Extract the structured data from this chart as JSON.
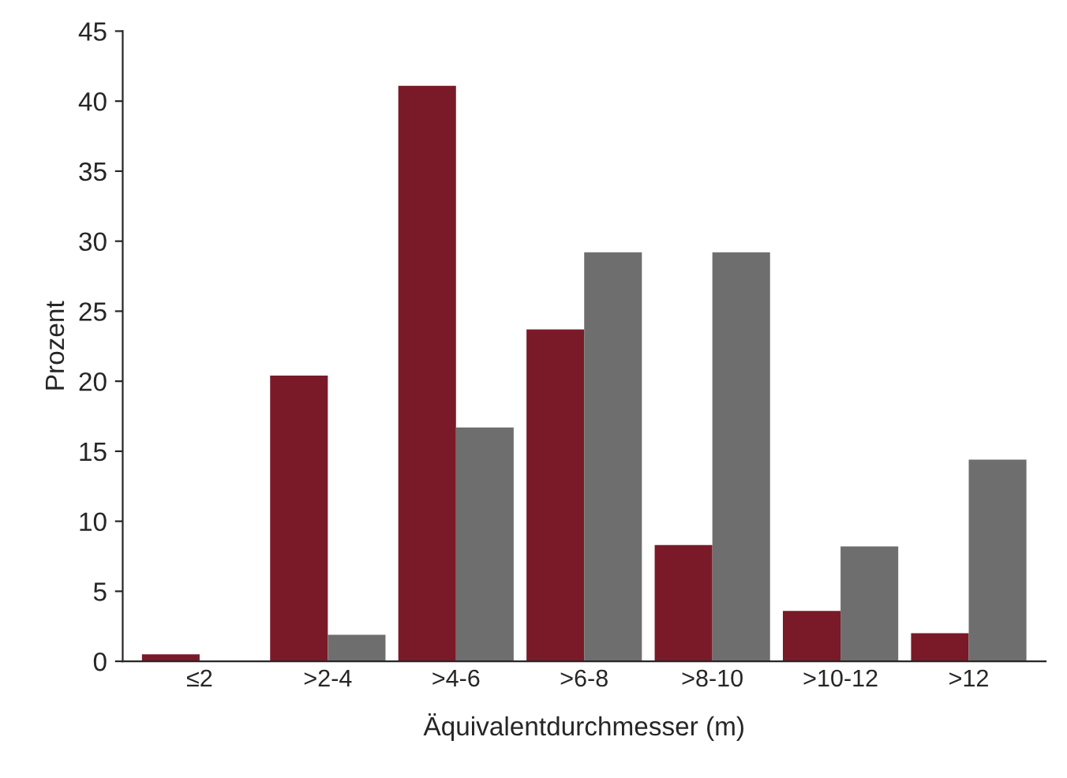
{
  "chart_data": {
    "type": "bar",
    "xlabel": "Äquivalentdurchmesser (m)",
    "ylabel": "Prozent",
    "categories": [
      "≤2",
      ">2-4",
      ">4-6",
      ">6-8",
      ">8-10",
      ">10-12",
      ">12"
    ],
    "series": [
      {
        "color": "#7a1a28",
        "values": [
          0.5,
          20.4,
          41.1,
          23.7,
          8.3,
          3.6,
          2.0
        ]
      },
      {
        "color": "#6e6e6e",
        "values": [
          null,
          1.9,
          16.7,
          29.2,
          29.2,
          8.2,
          14.4
        ]
      }
    ],
    "ylim": [
      0,
      45
    ],
    "yticks": [
      0,
      5,
      10,
      15,
      20,
      25,
      30,
      35,
      40,
      45
    ],
    "grid": false,
    "legend": false
  }
}
